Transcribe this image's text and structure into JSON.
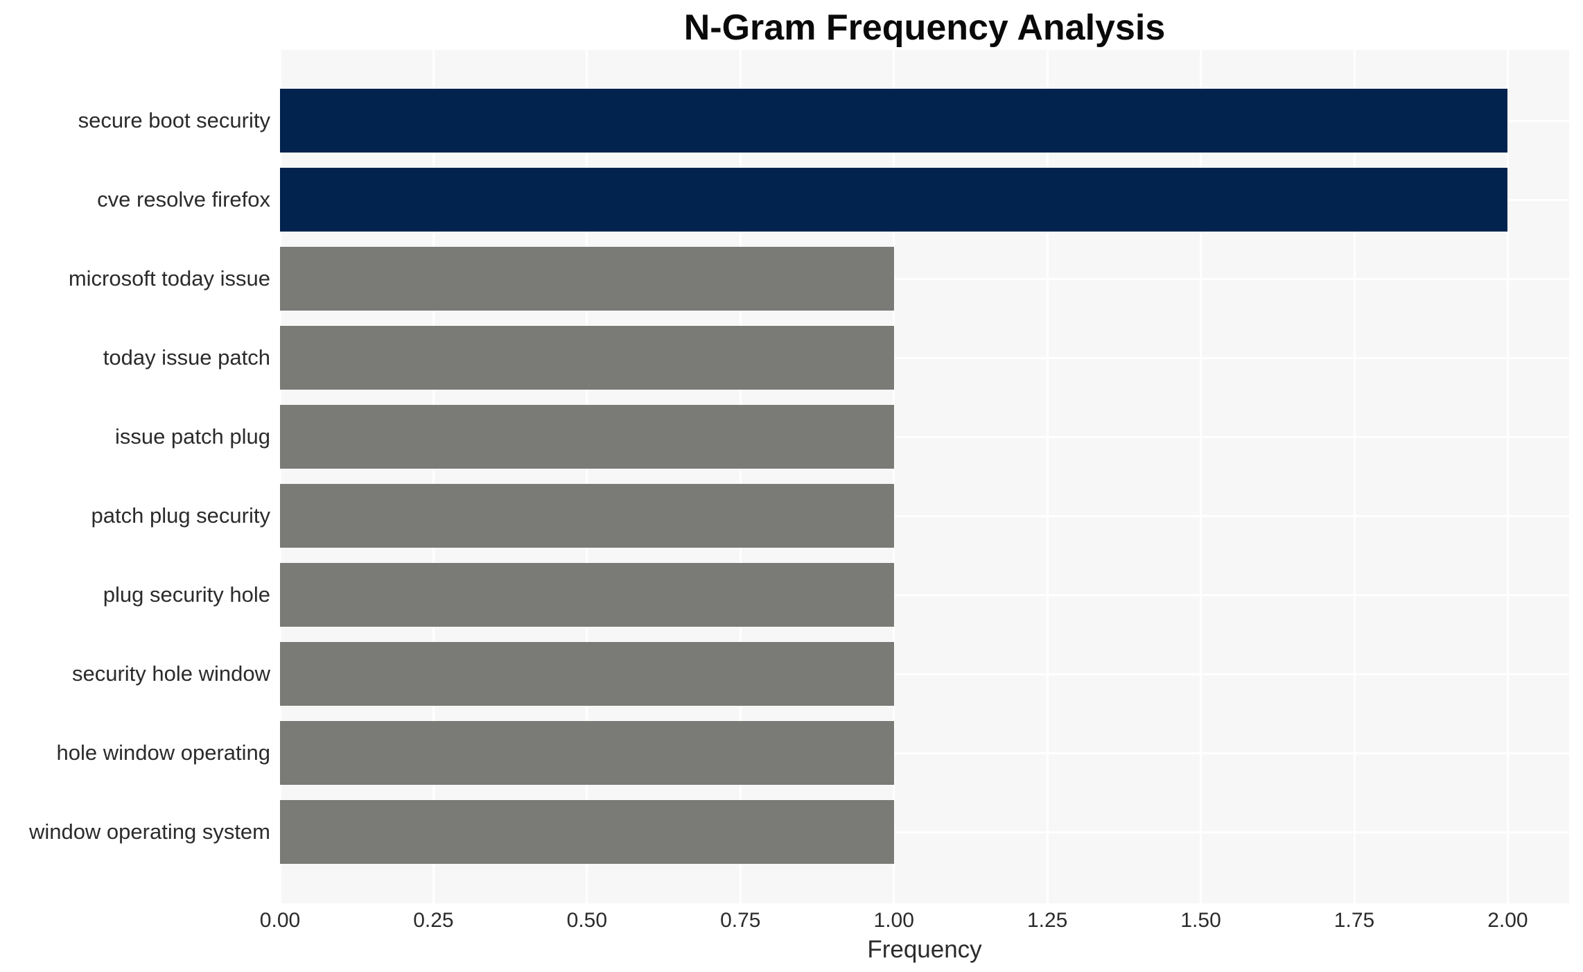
{
  "chart_data": {
    "type": "bar",
    "orientation": "horizontal",
    "title": "N-Gram Frequency Analysis",
    "xlabel": "Frequency",
    "ylabel": "",
    "categories": [
      "secure boot security",
      "cve resolve firefox",
      "microsoft today issue",
      "today issue patch",
      "issue patch plug",
      "patch plug security",
      "plug security hole",
      "security hole window",
      "hole window operating",
      "window operating system"
    ],
    "values": [
      2,
      2,
      1,
      1,
      1,
      1,
      1,
      1,
      1,
      1
    ],
    "bar_colors": [
      "#02234e",
      "#02234e",
      "#7a7a77",
      "#7a7a77",
      "#7a7a77",
      "#7a7a77",
      "#7a7a77",
      "#7a7a77",
      "#7a7a77",
      "#7a7a77"
    ],
    "xlim": [
      0,
      2.1
    ],
    "x_ticks": [
      {
        "value": 0.0,
        "label": "0.00"
      },
      {
        "value": 0.25,
        "label": "0.25"
      },
      {
        "value": 0.5,
        "label": "0.50"
      },
      {
        "value": 0.75,
        "label": "0.75"
      },
      {
        "value": 1.0,
        "label": "1.00"
      },
      {
        "value": 1.25,
        "label": "1.25"
      },
      {
        "value": 1.5,
        "label": "1.50"
      },
      {
        "value": 1.75,
        "label": "1.75"
      },
      {
        "value": 2.0,
        "label": "2.00"
      }
    ],
    "grid": true,
    "legend": false,
    "colors": {
      "plot_background": "#f7f7f7",
      "grid_color": "#ffffff",
      "bar_primary": "#02234e",
      "bar_secondary": "#7a7a77",
      "text": "#2b2b2b",
      "title_text": "#0a0a0a"
    }
  }
}
